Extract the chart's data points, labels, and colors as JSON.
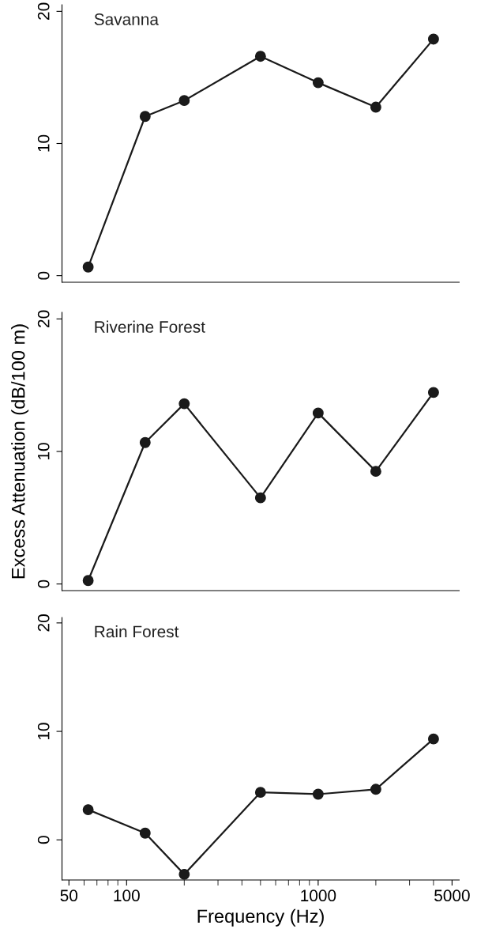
{
  "chart_data": [
    {
      "type": "line",
      "title": "Savanna",
      "x": [
        63,
        125,
        200,
        500,
        1000,
        2000,
        4000
      ],
      "log": "x",
      "xlim": [
        46,
        5450
      ],
      "ylim": [
        -0.5,
        20.5
      ],
      "yticks": [
        0,
        10,
        20
      ],
      "tick_labels": "y",
      "marker": "circle",
      "line_style": "solid",
      "grid": false,
      "legend": false,
      "series": [
        {
          "color": "#1a1a1a",
          "values": [
            0.65,
            12.05,
            13.25,
            16.6,
            14.6,
            12.75,
            17.9
          ]
        }
      ]
    },
    {
      "type": "line",
      "title": "Riverine Forest",
      "ylabel": "Excess Attenuation (dB/100 m)",
      "x": [
        63,
        125,
        200,
        500,
        1000,
        2000,
        4000
      ],
      "log": "x",
      "xlim": [
        46,
        5450
      ],
      "ylim": [
        -0.5,
        20.5
      ],
      "yticks": [
        0,
        10,
        20
      ],
      "tick_labels": "y",
      "marker": "circle",
      "line_style": "solid",
      "grid": false,
      "legend": false,
      "series": [
        {
          "color": "#1a1a1a",
          "values": [
            0.26,
            10.67,
            13.6,
            6.5,
            12.9,
            8.5,
            14.45
          ]
        }
      ]
    },
    {
      "type": "line",
      "title": "Rain Forest",
      "xlabel": "Frequency (Hz)",
      "x": [
        63,
        125,
        200,
        500,
        1000,
        2000,
        4000
      ],
      "log": "x",
      "xlim": [
        46,
        5450
      ],
      "xticks": [
        50,
        100,
        1000,
        5000
      ],
      "ylim": [
        -3.7,
        20.5
      ],
      "yticks": [
        0,
        10,
        20
      ],
      "marker": "circle",
      "line_style": "solid",
      "grid": false,
      "legend": false,
      "series": [
        {
          "color": "#1a1a1a",
          "values": [
            2.78,
            0.62,
            -3.18,
            4.38,
            4.21,
            4.66,
            9.3
          ]
        }
      ]
    }
  ]
}
